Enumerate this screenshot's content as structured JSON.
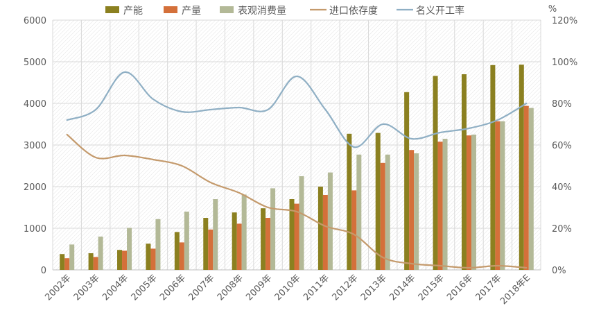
{
  "chart_data": {
    "type": "bar",
    "categories": [
      "2002年",
      "2003年",
      "2004年",
      "2005年",
      "2006年",
      "2007年",
      "2008年",
      "2009年",
      "2010年",
      "2011年",
      "2012年",
      "2013年",
      "2014年",
      "2015年",
      "2016年",
      "2017年",
      "2018年E"
    ],
    "series": [
      {
        "name": "产能",
        "kind": "bar",
        "axis": "left",
        "color": "#8B8020",
        "values": [
          380,
          400,
          480,
          630,
          910,
          1250,
          1380,
          1480,
          1700,
          2000,
          3270,
          3290,
          4270,
          4660,
          4700,
          4920,
          4930
        ]
      },
      {
        "name": "产量",
        "kind": "bar",
        "axis": "left",
        "color": "#D4703A",
        "values": [
          280,
          310,
          460,
          510,
          660,
          970,
          1110,
          1250,
          1590,
          1800,
          1910,
          2570,
          2880,
          3080,
          3230,
          3570,
          3940
        ]
      },
      {
        "name": "表观消费量",
        "kind": "bar",
        "axis": "left",
        "color": "#B3B997",
        "values": [
          610,
          800,
          1010,
          1220,
          1400,
          1700,
          1810,
          1960,
          2250,
          2340,
          2770,
          2770,
          2800,
          3150,
          3250,
          3570,
          3890
        ]
      },
      {
        "name": "进口依存度",
        "kind": "line",
        "axis": "right",
        "color": "#C49A6C",
        "values": [
          65,
          54,
          55,
          53,
          50,
          42,
          37,
          30,
          28,
          21,
          17,
          6,
          3,
          2,
          1,
          2,
          1
        ]
      },
      {
        "name": "名义开工率",
        "kind": "line",
        "axis": "right",
        "color": "#8FAFC4",
        "values": [
          72,
          77,
          95,
          82,
          76,
          77,
          78,
          77,
          93,
          77,
          59,
          70,
          63,
          66,
          68,
          72,
          80
        ]
      }
    ],
    "y_left": {
      "min": 0,
      "max": 6000,
      "ticks": [
        "0",
        "1000",
        "2000",
        "3000",
        "4000",
        "5000",
        "6000"
      ]
    },
    "y_right": {
      "min": 0,
      "max": 120,
      "unit_label": "%",
      "ticks": [
        "0%",
        "20%",
        "40%",
        "60%",
        "80%",
        "100%",
        "120%"
      ]
    },
    "legend_position": "top",
    "grid": true
  }
}
